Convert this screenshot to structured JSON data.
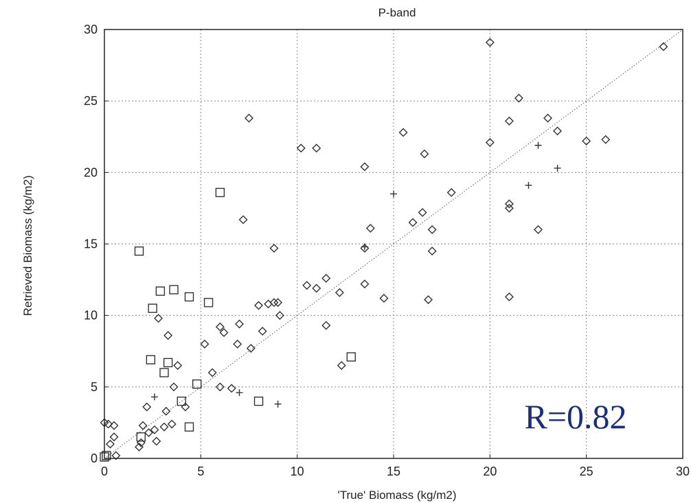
{
  "chart_data": {
    "type": "scatter",
    "title": "P-band",
    "xlabel": "'True'  Biomass  (kg/m2)",
    "ylabel": "Retrieved   Biomass  (kg/m2)",
    "xlim": [
      0,
      30
    ],
    "ylim": [
      0,
      30
    ],
    "xticks": [
      "0",
      "5",
      "10",
      "15",
      "20",
      "25",
      "30"
    ],
    "yticks": [
      "0",
      "5",
      "10",
      "15",
      "20",
      "25",
      "30"
    ],
    "grid": true,
    "annotation": "R=0.82",
    "reference_line": [
      [
        0,
        0
      ],
      [
        30,
        30
      ]
    ],
    "series": [
      {
        "marker": "diamond",
        "points": [
          [
            0,
            2.5
          ],
          [
            0.2,
            2.4
          ],
          [
            0.5,
            2.3
          ],
          [
            0.3,
            1.0
          ],
          [
            0.5,
            1.5
          ],
          [
            0.6,
            0.2
          ],
          [
            1.8,
            0.8
          ],
          [
            1.9,
            1.1
          ],
          [
            2.0,
            2.3
          ],
          [
            2.2,
            3.6
          ],
          [
            2.3,
            1.8
          ],
          [
            2.6,
            2.0
          ],
          [
            2.7,
            1.2
          ],
          [
            2.8,
            9.8
          ],
          [
            3.1,
            2.2
          ],
          [
            3.2,
            3.3
          ],
          [
            3.3,
            8.6
          ],
          [
            3.5,
            2.4
          ],
          [
            3.6,
            5.0
          ],
          [
            3.8,
            6.5
          ],
          [
            4.2,
            3.6
          ],
          [
            5.2,
            8.0
          ],
          [
            5.6,
            6.0
          ],
          [
            6.0,
            9.2
          ],
          [
            6.0,
            5.0
          ],
          [
            6.2,
            8.8
          ],
          [
            6.6,
            4.9
          ],
          [
            7.0,
            9.4
          ],
          [
            6.9,
            8.0
          ],
          [
            7.2,
            16.7
          ],
          [
            7.5,
            23.8
          ],
          [
            7.6,
            7.7
          ],
          [
            8.0,
            10.7
          ],
          [
            8.2,
            8.9
          ],
          [
            8.5,
            10.8
          ],
          [
            8.8,
            14.7
          ],
          [
            8.8,
            10.9
          ],
          [
            9.0,
            10.9
          ],
          [
            9.1,
            10.0
          ],
          [
            10.2,
            21.7
          ],
          [
            10.5,
            12.1
          ],
          [
            11.0,
            21.7
          ],
          [
            11.0,
            11.9
          ],
          [
            11.5,
            12.6
          ],
          [
            11.5,
            9.3
          ],
          [
            12.2,
            11.6
          ],
          [
            12.3,
            6.5
          ],
          [
            13.5,
            20.4
          ],
          [
            13.5,
            12.2
          ],
          [
            13.5,
            14.7
          ],
          [
            13.8,
            16.1
          ],
          [
            14.5,
            11.2
          ],
          [
            15.5,
            22.8
          ],
          [
            16.0,
            16.5
          ],
          [
            16.5,
            17.2
          ],
          [
            16.6,
            21.3
          ],
          [
            16.8,
            11.1
          ],
          [
            17.0,
            16.0
          ],
          [
            17.0,
            14.5
          ],
          [
            18.0,
            18.6
          ],
          [
            20.0,
            29.1
          ],
          [
            20.0,
            22.1
          ],
          [
            21.0,
            23.6
          ],
          [
            21.0,
            17.8
          ],
          [
            21.0,
            17.5
          ],
          [
            21.0,
            11.3
          ],
          [
            21.5,
            25.2
          ],
          [
            22.5,
            16.0
          ],
          [
            23.0,
            23.8
          ],
          [
            23.5,
            22.9
          ],
          [
            25.0,
            22.2
          ],
          [
            26.0,
            22.3
          ],
          [
            29.0,
            28.8
          ]
        ]
      },
      {
        "marker": "square",
        "points": [
          [
            0,
            0.1
          ],
          [
            0.1,
            0.2
          ],
          [
            1.8,
            14.5
          ],
          [
            1.9,
            1.5
          ],
          [
            2.4,
            6.9
          ],
          [
            2.5,
            10.5
          ],
          [
            2.9,
            11.7
          ],
          [
            3.1,
            6.0
          ],
          [
            3.3,
            6.7
          ],
          [
            3.6,
            11.8
          ],
          [
            4.0,
            4.0
          ],
          [
            4.4,
            11.3
          ],
          [
            4.4,
            2.2
          ],
          [
            4.8,
            5.2
          ],
          [
            5.4,
            10.9
          ],
          [
            6.0,
            18.6
          ],
          [
            8.0,
            4.0
          ],
          [
            12.8,
            7.1
          ]
        ]
      },
      {
        "marker": "plus",
        "points": [
          [
            2.6,
            4.3
          ],
          [
            7.0,
            4.6
          ],
          [
            9.0,
            3.8
          ],
          [
            13.5,
            14.8
          ],
          [
            15.0,
            18.5
          ],
          [
            22.0,
            19.1
          ],
          [
            22.5,
            21.9
          ],
          [
            23.5,
            20.3
          ]
        ]
      }
    ]
  }
}
